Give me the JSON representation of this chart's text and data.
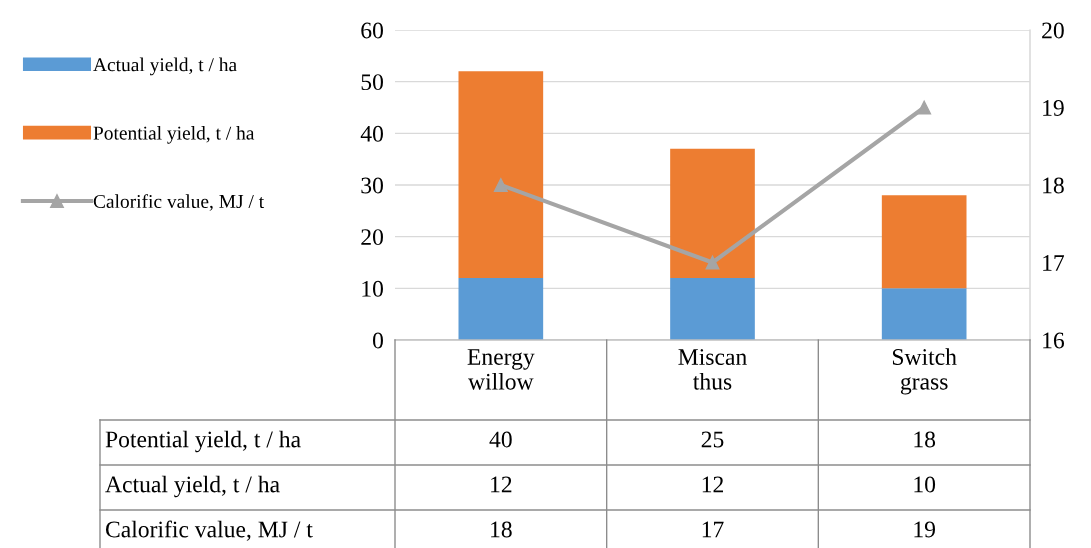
{
  "chart_data": {
    "type": "bar",
    "stacked": true,
    "categories": [
      "Energy\nwillow",
      "Miscan\nthus",
      "Switch\ngrass"
    ],
    "series": [
      {
        "name": "Actual yield, t / ha",
        "color": "#5b9bd5",
        "values": [
          12,
          12,
          10
        ]
      },
      {
        "name": "Potential yield, t / ha",
        "color": "#ed7d31",
        "values": [
          40,
          25,
          18
        ]
      },
      {
        "name": "Calorific value, MJ / t",
        "color": "#a5a5a5",
        "values": [
          18,
          17,
          19
        ],
        "type": "line",
        "axis": "y2",
        "marker": "triangle"
      }
    ],
    "ylim": [
      0,
      60
    ],
    "yticks": [
      0,
      10,
      20,
      30,
      40,
      50,
      60
    ],
    "y2lim": [
      16,
      20
    ],
    "y2ticks": [
      16,
      17,
      18,
      19,
      20
    ],
    "grid": "y",
    "legend": "left",
    "data_labels": true
  }
}
